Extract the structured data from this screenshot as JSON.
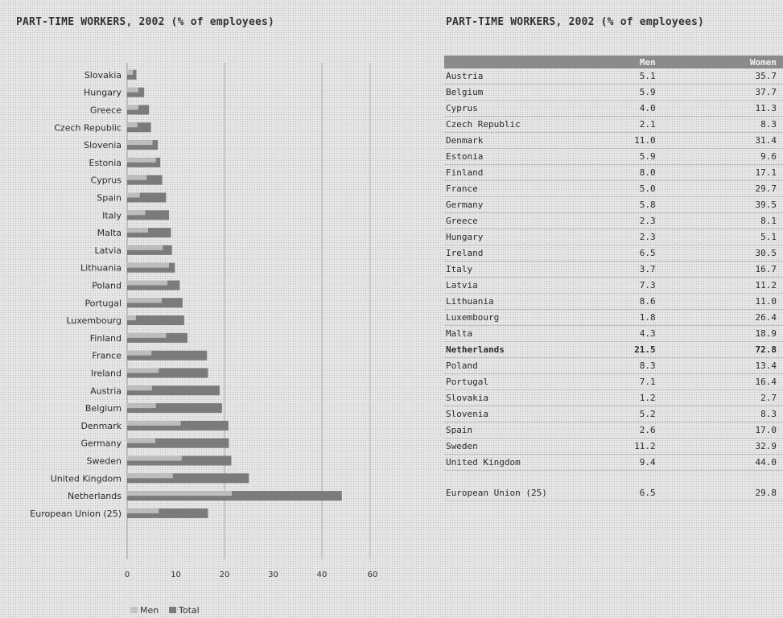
{
  "chart_title": "PART-TIME WORKERS, 2002 (% of employees)",
  "table_title": "PART-TIME WORKERS, 2002 (% of employees)",
  "colors": {
    "men": "#c4c4c4",
    "total": "#7b7b7b",
    "header": "#8a8a8a"
  },
  "chart_data": {
    "type": "bar",
    "orientation": "horizontal",
    "title": "PART-TIME WORKERS, 2002 (% of employees)",
    "xlim": [
      0,
      60
    ],
    "xticks": [
      "0",
      "10",
      "20",
      "30",
      "40",
      "60"
    ],
    "grid": true,
    "legend_position": "bottom-left",
    "categories": [
      "Slovakia",
      "Hungary",
      "Greece",
      "Czech Republic",
      "Slovenia",
      "Estonia",
      "Cyprus",
      "Spain",
      "Italy",
      "Malta",
      "Latvia",
      "Lithuania",
      "Poland",
      "Portugal",
      "Luxembourg",
      "Finland",
      "France",
      "Ireland",
      "Austria",
      "Belgium",
      "Denmark",
      "Germany",
      "Sweden",
      "United Kingdom",
      "Netherlands",
      "European Union (25)"
    ],
    "series": [
      {
        "name": "Men",
        "values": [
          1.2,
          2.3,
          2.3,
          2.1,
          5.2,
          5.9,
          4.0,
          2.6,
          3.7,
          4.3,
          7.3,
          8.6,
          8.3,
          7.1,
          1.8,
          8.0,
          5.0,
          6.5,
          5.1,
          5.9,
          11.0,
          5.8,
          11.2,
          9.4,
          21.5,
          6.5
        ]
      },
      {
        "name": "Total",
        "values": [
          1.9,
          3.5,
          4.5,
          4.9,
          6.3,
          6.8,
          7.2,
          8.0,
          8.6,
          9.0,
          9.2,
          9.8,
          10.8,
          11.4,
          11.7,
          12.4,
          16.4,
          16.6,
          19.0,
          19.5,
          20.8,
          20.9,
          21.4,
          25.0,
          44.1,
          16.6
        ]
      }
    ]
  },
  "table": {
    "headers": [
      "",
      "Men",
      "Women"
    ],
    "rows": [
      [
        "Austria",
        "5.1",
        "35.7"
      ],
      [
        "Belgium",
        "5.9",
        "37.7"
      ],
      [
        "Cyprus",
        "4.0",
        "11.3"
      ],
      [
        "Czech Republic",
        "2.1",
        "8.3"
      ],
      [
        "Denmark",
        "11.0",
        "31.4"
      ],
      [
        "Estonia",
        "5.9",
        "9.6"
      ],
      [
        "Finland",
        "8.0",
        "17.1"
      ],
      [
        "France",
        "5.0",
        "29.7"
      ],
      [
        "Germany",
        "5.8",
        "39.5"
      ],
      [
        "Greece",
        "2.3",
        "8.1"
      ],
      [
        "Hungary",
        "2.3",
        "5.1"
      ],
      [
        "Ireland",
        "6.5",
        "30.5"
      ],
      [
        "Italy",
        "3.7",
        "16.7"
      ],
      [
        "Latvia",
        "7.3",
        "11.2"
      ],
      [
        "Lithuania",
        "8.6",
        "11.0"
      ],
      [
        "Luxembourg",
        "1.8",
        "26.4"
      ],
      [
        "Malta",
        "4.3",
        "18.9"
      ],
      [
        "Netherlands",
        "21.5",
        "72.8"
      ],
      [
        "Poland",
        "8.3",
        "13.4"
      ],
      [
        "Portugal",
        "7.1",
        "16.4"
      ],
      [
        "Slovakia",
        "1.2",
        "2.7"
      ],
      [
        "Slovenia",
        "5.2",
        "8.3"
      ],
      [
        "Spain",
        "2.6",
        "17.0"
      ],
      [
        "Sweden",
        "11.2",
        "32.9"
      ],
      [
        "United Kingdom",
        "9.4",
        "44.0"
      ]
    ],
    "eu_row": [
      "European Union (25)",
      "6.5",
      "29.8"
    ]
  }
}
